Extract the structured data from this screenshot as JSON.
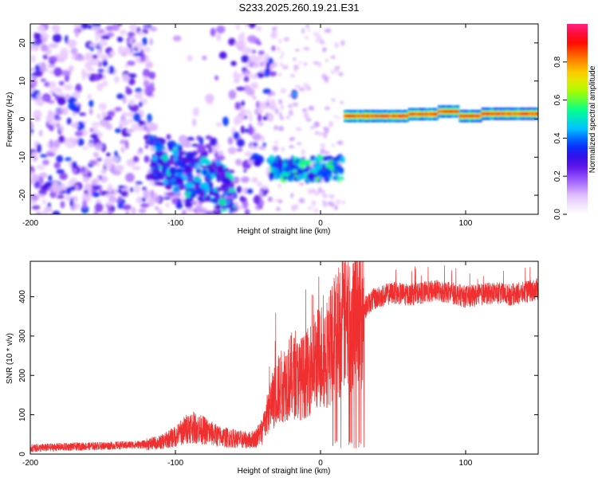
{
  "title": "S233.2025.260.19.21.E31",
  "chart_data": [
    {
      "type": "heatmap",
      "title": "S233.2025.260.19.21.E31",
      "xlabel": "Height of straight line (km)",
      "ylabel": "Frequency (Hz)",
      "xlim": [
        -200,
        150
      ],
      "ylim": [
        -25,
        25
      ],
      "xticks": [
        -200,
        -100,
        0,
        100
      ],
      "yticks": [
        -20,
        -10,
        0,
        10,
        20
      ],
      "colorbar": {
        "label": "Normalized spectral amplitude",
        "range": [
          0,
          1
        ],
        "ticks": [
          0.0,
          0.2,
          0.4,
          0.6,
          0.8
        ],
        "colors": [
          "#ffffff",
          "#e8c8ff",
          "#9b59ff",
          "#4b00e0",
          "#0033ff",
          "#00c8ff",
          "#00ff90",
          "#9cff00",
          "#ffe000",
          "#ff7a00",
          "#ff0000",
          "#ff2080"
        ]
      },
      "regions": [
        {
          "name": "scatter-noise",
          "x": [
            -200,
            -35
          ],
          "freq": [
            -25,
            25
          ],
          "amplitude": 0.3
        },
        {
          "name": "lower-band",
          "x": [
            -118,
            -62
          ],
          "freq": [
            -22,
            -6
          ],
          "amplitude": 0.5
        },
        {
          "name": "mid-band",
          "x": [
            -35,
            16
          ],
          "freq": [
            -16,
            -10
          ],
          "amplitude": 0.55
        },
        {
          "name": "carrier-band",
          "x": [
            16,
            150
          ],
          "freq": [
            -1,
            3
          ],
          "amplitude": 0.95
        }
      ]
    },
    {
      "type": "line",
      "xlabel": "Height of straight line (km)",
      "ylabel": "SNR (10 * v/v)",
      "xlim": [
        -200,
        150
      ],
      "ylim": [
        0,
        490
      ],
      "xticks": [
        -200,
        -100,
        0,
        100
      ],
      "yticks": [
        0,
        100,
        200,
        300,
        400
      ],
      "series": [
        {
          "name": "SNR",
          "color": "#f03030",
          "x": [
            -200,
            -180,
            -160,
            -140,
            -120,
            -110,
            -100,
            -90,
            -80,
            -70,
            -60,
            -50,
            -45,
            -40,
            -35,
            -30,
            -25,
            -20,
            -15,
            -10,
            -5,
            0,
            5,
            10,
            15,
            20,
            25,
            30,
            35,
            40,
            50,
            60,
            70,
            80,
            90,
            100,
            110,
            120,
            130,
            140,
            150
          ],
          "values": [
            15,
            18,
            20,
            22,
            25,
            30,
            45,
            70,
            60,
            45,
            40,
            35,
            40,
            60,
            120,
            160,
            180,
            200,
            190,
            200,
            230,
            250,
            260,
            300,
            330,
            340,
            360,
            370,
            390,
            400,
            410,
            405,
            410,
            415,
            410,
            400,
            405,
            410,
            405,
            410,
            420
          ]
        }
      ]
    }
  ]
}
